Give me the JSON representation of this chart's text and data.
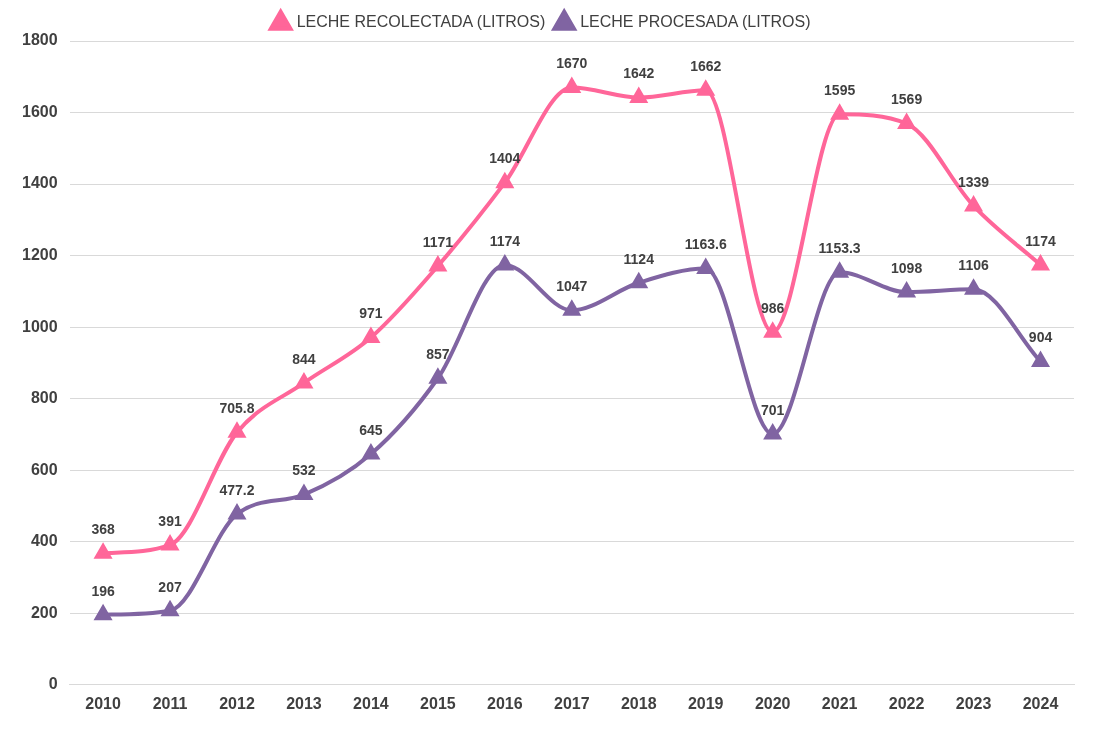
{
  "chart_data": {
    "type": "line",
    "categories": [
      "2010",
      "2011",
      "2012",
      "2013",
      "2014",
      "2015",
      "2016",
      "2017",
      "2018",
      "2019",
      "2020",
      "2021",
      "2022",
      "2023",
      "2024"
    ],
    "series": [
      {
        "name": "LECHE RECOLECTADA (LITROS)",
        "color": "#ff6699",
        "values": [
          368,
          391,
          705.8,
          844,
          971,
          1171,
          1404,
          1670,
          1642,
          1662,
          986,
          1595,
          1569,
          1339,
          1174
        ]
      },
      {
        "name": "LECHE PROCESADA (LITROS)",
        "color": "#8064a2",
        "values": [
          196,
          207,
          477.2,
          532,
          645,
          857,
          1174,
          1047,
          1124,
          1163.6,
          701,
          1153.3,
          1098,
          1106,
          904
        ]
      }
    ],
    "ylim": [
      0,
      1800
    ],
    "yticks": [
      0,
      200,
      400,
      600,
      800,
      1000,
      1200,
      1400,
      1600,
      1800
    ],
    "grid": "y",
    "legend": "top",
    "marker": "triangle",
    "line_style": "solid",
    "data_labels": true
  }
}
